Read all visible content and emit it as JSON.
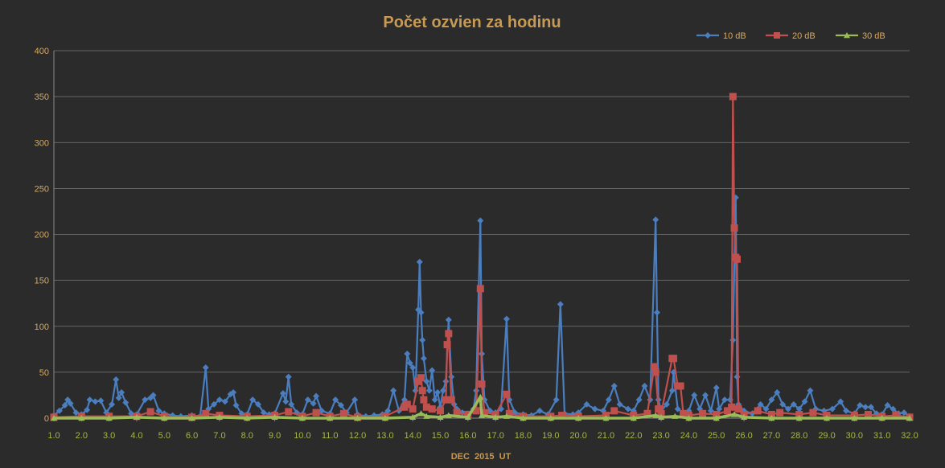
{
  "chart_data": {
    "type": "line",
    "title": "Počet ozvien za hodinu",
    "xlabel": "DEC  2015  UT",
    "ylabel": "",
    "xlim": [
      1.0,
      32.0
    ],
    "ylim": [
      0,
      400
    ],
    "grid": true,
    "legend_position": "top-right",
    "x_ticks": [
      "1.0",
      "2.0",
      "3.0",
      "4.0",
      "5.0",
      "6.0",
      "7.0",
      "8.0",
      "9.0",
      "10.0",
      "11.0",
      "12.0",
      "13.0",
      "14.0",
      "15.0",
      "16.0",
      "17.0",
      "18.0",
      "19.0",
      "20.0",
      "21.0",
      "22.0",
      "23.0",
      "24.0",
      "25.0",
      "26.0",
      "27.0",
      "28.0",
      "29.0",
      "30.0",
      "31.0",
      "32.0"
    ],
    "y_ticks": [
      "0",
      "50",
      "100",
      "150",
      "200",
      "250",
      "300",
      "350",
      "400"
    ],
    "colors": {
      "background": "#2b2b2b",
      "title": "#c79a55",
      "tick_y": "#d9a85a",
      "tick_x": "#a4b64a",
      "grid": "#7a7a7a"
    },
    "series": [
      {
        "name": "10 dB",
        "color": "#4a7ebf",
        "marker": "diamond",
        "points": [
          [
            1.0,
            3
          ],
          [
            1.2,
            8
          ],
          [
            1.4,
            14
          ],
          [
            1.5,
            20
          ],
          [
            1.6,
            16
          ],
          [
            1.8,
            6
          ],
          [
            2.0,
            4
          ],
          [
            2.2,
            9
          ],
          [
            2.3,
            20
          ],
          [
            2.5,
            18
          ],
          [
            2.7,
            19
          ],
          [
            2.9,
            6
          ],
          [
            3.1,
            15
          ],
          [
            3.25,
            42
          ],
          [
            3.35,
            22
          ],
          [
            3.45,
            28
          ],
          [
            3.6,
            17
          ],
          [
            3.8,
            5
          ],
          [
            4.0,
            4
          ],
          [
            4.3,
            20
          ],
          [
            4.5,
            22
          ],
          [
            4.6,
            25
          ],
          [
            4.8,
            8
          ],
          [
            5.0,
            5
          ],
          [
            5.3,
            3
          ],
          [
            5.6,
            2
          ],
          [
            6.0,
            3
          ],
          [
            6.3,
            2
          ],
          [
            6.5,
            55
          ],
          [
            6.6,
            10
          ],
          [
            6.8,
            15
          ],
          [
            7.0,
            20
          ],
          [
            7.2,
            18
          ],
          [
            7.4,
            26
          ],
          [
            7.5,
            28
          ],
          [
            7.6,
            14
          ],
          [
            7.8,
            5
          ],
          [
            8.0,
            4
          ],
          [
            8.2,
            20
          ],
          [
            8.4,
            15
          ],
          [
            8.6,
            6
          ],
          [
            8.8,
            4
          ],
          [
            9.0,
            5
          ],
          [
            9.3,
            27
          ],
          [
            9.4,
            18
          ],
          [
            9.5,
            45
          ],
          [
            9.6,
            15
          ],
          [
            9.8,
            6
          ],
          [
            10.0,
            4
          ],
          [
            10.2,
            20
          ],
          [
            10.4,
            16
          ],
          [
            10.5,
            24
          ],
          [
            10.7,
            8
          ],
          [
            11.0,
            5
          ],
          [
            11.2,
            20
          ],
          [
            11.4,
            14
          ],
          [
            11.6,
            6
          ],
          [
            11.9,
            20
          ],
          [
            12.0,
            4
          ],
          [
            12.3,
            2
          ],
          [
            12.6,
            3
          ],
          [
            12.9,
            4
          ],
          [
            13.1,
            8
          ],
          [
            13.3,
            30
          ],
          [
            13.5,
            8
          ],
          [
            13.7,
            20
          ],
          [
            13.8,
            70
          ],
          [
            13.9,
            60
          ],
          [
            14.0,
            55
          ],
          [
            14.1,
            30
          ],
          [
            14.2,
            118
          ],
          [
            14.25,
            170
          ],
          [
            14.3,
            115
          ],
          [
            14.35,
            85
          ],
          [
            14.4,
            65
          ],
          [
            14.5,
            40
          ],
          [
            14.6,
            30
          ],
          [
            14.7,
            52
          ],
          [
            14.8,
            20
          ],
          [
            14.9,
            28
          ],
          [
            15.0,
            12
          ],
          [
            15.1,
            30
          ],
          [
            15.2,
            40
          ],
          [
            15.3,
            107
          ],
          [
            15.4,
            45
          ],
          [
            15.5,
            15
          ],
          [
            15.6,
            10
          ],
          [
            15.8,
            6
          ],
          [
            16.0,
            5
          ],
          [
            16.2,
            10
          ],
          [
            16.3,
            30
          ],
          [
            16.45,
            215
          ],
          [
            16.5,
            70
          ],
          [
            16.6,
            20
          ],
          [
            16.8,
            8
          ],
          [
            17.0,
            6
          ],
          [
            17.2,
            10
          ],
          [
            17.4,
            108
          ],
          [
            17.5,
            20
          ],
          [
            17.7,
            6
          ],
          [
            18.0,
            4
          ],
          [
            18.3,
            3
          ],
          [
            18.6,
            8
          ],
          [
            18.9,
            4
          ],
          [
            19.2,
            20
          ],
          [
            19.35,
            124
          ],
          [
            19.5,
            5
          ],
          [
            19.8,
            4
          ],
          [
            20.0,
            6
          ],
          [
            20.3,
            15
          ],
          [
            20.6,
            10
          ],
          [
            20.9,
            8
          ],
          [
            21.1,
            20
          ],
          [
            21.3,
            35
          ],
          [
            21.5,
            15
          ],
          [
            21.8,
            10
          ],
          [
            22.0,
            8
          ],
          [
            22.2,
            20
          ],
          [
            22.4,
            35
          ],
          [
            22.6,
            20
          ],
          [
            22.8,
            216
          ],
          [
            22.85,
            115
          ],
          [
            22.9,
            20
          ],
          [
            23.0,
            8
          ],
          [
            23.2,
            15
          ],
          [
            23.4,
            30
          ],
          [
            23.45,
            50
          ],
          [
            23.6,
            10
          ],
          [
            23.8,
            6
          ],
          [
            24.0,
            8
          ],
          [
            24.2,
            25
          ],
          [
            24.4,
            10
          ],
          [
            24.6,
            25
          ],
          [
            24.8,
            8
          ],
          [
            25.0,
            33
          ],
          [
            25.1,
            10
          ],
          [
            25.3,
            20
          ],
          [
            25.5,
            20
          ],
          [
            25.6,
            85
          ],
          [
            25.7,
            240
          ],
          [
            25.75,
            45
          ],
          [
            25.8,
            15
          ],
          [
            26.0,
            8
          ],
          [
            26.3,
            5
          ],
          [
            26.6,
            15
          ],
          [
            26.8,
            10
          ],
          [
            27.0,
            20
          ],
          [
            27.2,
            28
          ],
          [
            27.4,
            15
          ],
          [
            27.6,
            10
          ],
          [
            27.8,
            15
          ],
          [
            28.0,
            10
          ],
          [
            28.2,
            18
          ],
          [
            28.4,
            30
          ],
          [
            28.6,
            10
          ],
          [
            28.9,
            8
          ],
          [
            29.2,
            10
          ],
          [
            29.5,
            18
          ],
          [
            29.7,
            8
          ],
          [
            30.0,
            5
          ],
          [
            30.2,
            14
          ],
          [
            30.4,
            12
          ],
          [
            30.6,
            12
          ],
          [
            30.8,
            5
          ],
          [
            31.0,
            4
          ],
          [
            31.2,
            14
          ],
          [
            31.4,
            10
          ],
          [
            31.6,
            5
          ],
          [
            31.8,
            6
          ],
          [
            32.0,
            2
          ]
        ]
      },
      {
        "name": "20 dB",
        "color": "#c0504d",
        "marker": "square",
        "points": [
          [
            1.0,
            1
          ],
          [
            2.0,
            2
          ],
          [
            3.0,
            2
          ],
          [
            4.0,
            2
          ],
          [
            4.5,
            7
          ],
          [
            5.0,
            2
          ],
          [
            6.0,
            1
          ],
          [
            6.5,
            5
          ],
          [
            7.0,
            3
          ],
          [
            8.0,
            2
          ],
          [
            9.0,
            3
          ],
          [
            9.5,
            7
          ],
          [
            10.0,
            2
          ],
          [
            10.5,
            6
          ],
          [
            11.0,
            2
          ],
          [
            11.5,
            5
          ],
          [
            12.0,
            1
          ],
          [
            13.0,
            2
          ],
          [
            13.7,
            12
          ],
          [
            13.8,
            15
          ],
          [
            14.0,
            10
          ],
          [
            14.2,
            40
          ],
          [
            14.3,
            44
          ],
          [
            14.35,
            30
          ],
          [
            14.4,
            20
          ],
          [
            14.5,
            12
          ],
          [
            14.7,
            10
          ],
          [
            15.0,
            8
          ],
          [
            15.2,
            20
          ],
          [
            15.25,
            80
          ],
          [
            15.3,
            92
          ],
          [
            15.4,
            20
          ],
          [
            15.6,
            6
          ],
          [
            16.0,
            4
          ],
          [
            16.3,
            8
          ],
          [
            16.45,
            141
          ],
          [
            16.5,
            37
          ],
          [
            16.6,
            6
          ],
          [
            17.0,
            4
          ],
          [
            17.4,
            26
          ],
          [
            17.5,
            5
          ],
          [
            18.0,
            2
          ],
          [
            19.0,
            2
          ],
          [
            19.4,
            3
          ],
          [
            20.0,
            2
          ],
          [
            21.0,
            3
          ],
          [
            21.3,
            8
          ],
          [
            22.0,
            3
          ],
          [
            22.5,
            5
          ],
          [
            22.75,
            56
          ],
          [
            22.8,
            50
          ],
          [
            22.9,
            10
          ],
          [
            23.0,
            5
          ],
          [
            23.4,
            65
          ],
          [
            23.45,
            65
          ],
          [
            23.6,
            35
          ],
          [
            23.7,
            35
          ],
          [
            23.8,
            5
          ],
          [
            24.0,
            3
          ],
          [
            24.5,
            5
          ],
          [
            25.0,
            4
          ],
          [
            25.4,
            8
          ],
          [
            25.55,
            12
          ],
          [
            25.6,
            350
          ],
          [
            25.65,
            207
          ],
          [
            25.7,
            175
          ],
          [
            25.75,
            173
          ],
          [
            25.8,
            10
          ],
          [
            26.0,
            4
          ],
          [
            26.5,
            8
          ],
          [
            27.0,
            4
          ],
          [
            27.3,
            6
          ],
          [
            28.0,
            4
          ],
          [
            28.5,
            6
          ],
          [
            29.0,
            3
          ],
          [
            30.0,
            3
          ],
          [
            30.5,
            4
          ],
          [
            31.0,
            2
          ],
          [
            31.5,
            3
          ],
          [
            32.0,
            1
          ]
        ]
      },
      {
        "name": "30 dB",
        "color": "#9bbb59",
        "marker": "triangle",
        "points": [
          [
            1.0,
            0
          ],
          [
            2.0,
            0
          ],
          [
            3.0,
            0
          ],
          [
            4.0,
            1
          ],
          [
            5.0,
            0
          ],
          [
            6.0,
            0
          ],
          [
            7.0,
            1
          ],
          [
            8.0,
            0
          ],
          [
            9.0,
            1
          ],
          [
            10.0,
            0
          ],
          [
            11.0,
            0
          ],
          [
            12.0,
            0
          ],
          [
            13.0,
            0
          ],
          [
            14.0,
            1
          ],
          [
            14.3,
            5
          ],
          [
            14.5,
            2
          ],
          [
            15.0,
            1
          ],
          [
            15.3,
            3
          ],
          [
            16.0,
            1
          ],
          [
            16.45,
            23
          ],
          [
            16.5,
            3
          ],
          [
            17.0,
            1
          ],
          [
            17.4,
            2
          ],
          [
            18.0,
            0
          ],
          [
            19.0,
            0
          ],
          [
            20.0,
            0
          ],
          [
            21.0,
            0
          ],
          [
            22.0,
            0
          ],
          [
            22.8,
            3
          ],
          [
            23.0,
            1
          ],
          [
            23.5,
            2
          ],
          [
            24.0,
            0
          ],
          [
            25.0,
            0
          ],
          [
            25.65,
            4
          ],
          [
            26.0,
            1
          ],
          [
            27.0,
            0
          ],
          [
            28.0,
            0
          ],
          [
            29.0,
            0
          ],
          [
            30.0,
            0
          ],
          [
            31.0,
            0
          ],
          [
            32.0,
            0
          ]
        ]
      }
    ]
  }
}
